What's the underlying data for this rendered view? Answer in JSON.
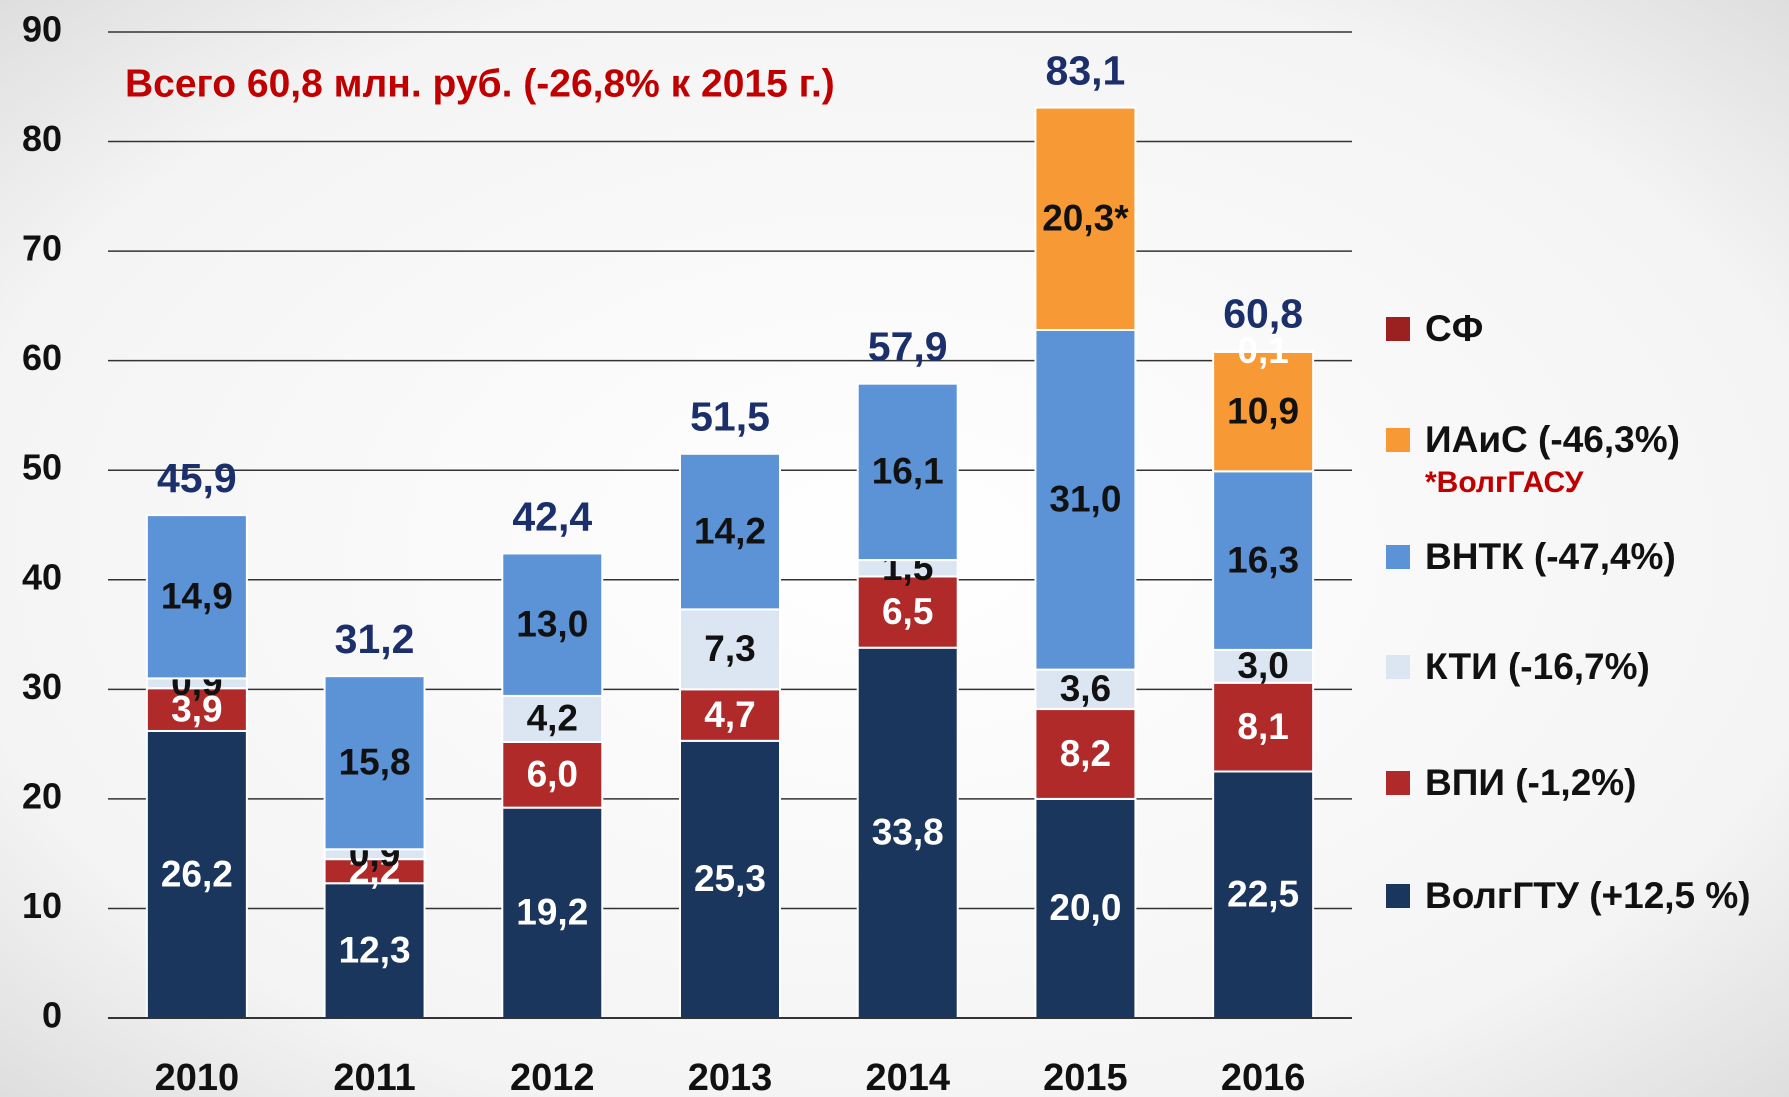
{
  "chart_data": {
    "type": "bar",
    "stacked": true,
    "annotation": "Всего 60,8 млн. руб. (-26,8% к 2015 г.)",
    "note": "*ВолгГАСУ",
    "categories": [
      "2010",
      "2011",
      "2012",
      "2013",
      "2014",
      "2015",
      "2016"
    ],
    "totals": [
      45.9,
      31.2,
      42.4,
      51.5,
      57.9,
      83.1,
      60.8
    ],
    "totals_labels": [
      "45,9",
      "31,2",
      "42,4",
      "51,5",
      "57,9",
      "83,1",
      "60,8"
    ],
    "series": [
      {
        "name": "ВолгГТУ (+12,5 %)",
        "color": "#1b365d",
        "values": [
          26.2,
          12.3,
          19.2,
          25.3,
          33.8,
          20.0,
          22.5
        ],
        "value_labels": [
          "26,2",
          "12,3",
          "19,2",
          "25,3",
          "33,8",
          "20,0",
          "22,5"
        ]
      },
      {
        "name": "ВПИ (-1,2%)",
        "color": "#b02a2a",
        "values": [
          3.9,
          2.2,
          6.0,
          4.7,
          6.5,
          8.2,
          8.1
        ],
        "value_labels": [
          "3,9",
          "2,2",
          "6,0",
          "4,7",
          "6,5",
          "8,2",
          "8,1"
        ]
      },
      {
        "name": "КТИ (-16,7%)",
        "color": "#dce6f2",
        "values": [
          0.9,
          0.9,
          4.2,
          7.3,
          1.5,
          3.6,
          3.0
        ],
        "value_labels": [
          "0,9",
          "0,9",
          "4,2",
          "7,3",
          "1,5",
          "3,6",
          "3,0"
        ]
      },
      {
        "name": "ВНТК (-47,4%)",
        "color": "#5b93d6",
        "values": [
          14.9,
          15.8,
          13.0,
          14.2,
          16.1,
          31.0,
          16.3
        ],
        "value_labels": [
          "14,9",
          "15,8",
          "13,0",
          "14,2",
          "16,1",
          "31,0",
          "16,3"
        ]
      },
      {
        "name": "ИАиС (-46,3%)",
        "color": "#f79a35",
        "values": [
          null,
          null,
          null,
          null,
          null,
          20.3,
          10.9
        ],
        "value_labels": [
          null,
          null,
          null,
          null,
          null,
          "20,3*",
          "10,9"
        ]
      },
      {
        "name": "СФ",
        "color": "#9b2020",
        "values": [
          null,
          null,
          null,
          null,
          null,
          null,
          0.1
        ],
        "value_labels": [
          null,
          null,
          null,
          null,
          null,
          null,
          "0,1"
        ]
      }
    ],
    "ylim": [
      0,
      90
    ],
    "yticks": [
      0,
      10,
      20,
      30,
      40,
      50,
      60,
      70,
      80,
      90
    ],
    "grid": true
  }
}
